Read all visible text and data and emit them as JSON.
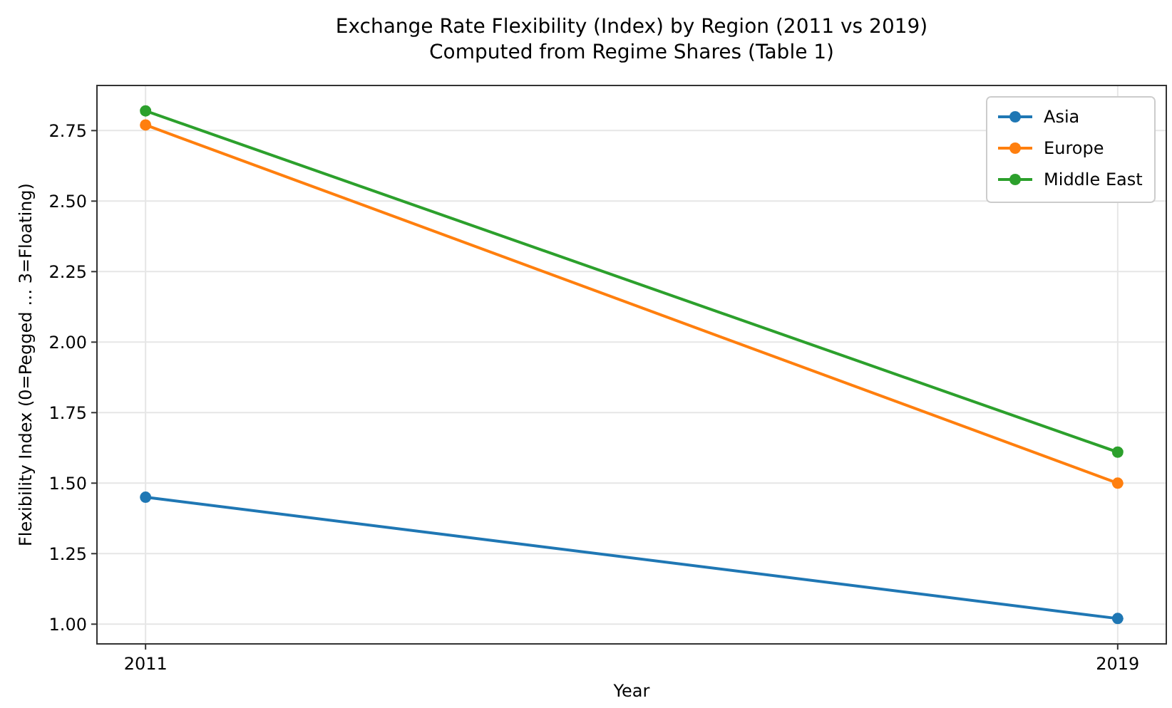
{
  "chart_data": {
    "type": "line",
    "title": "Exchange Rate Flexibility (Index) by Region (2011 vs 2019)",
    "subtitle": "Computed from Regime Shares (Table 1)",
    "xlabel": "Year",
    "ylabel": "Flexibility Index (0=Pegged … 3=Floating)",
    "x": [
      2011,
      2019
    ],
    "series": [
      {
        "name": "Asia",
        "color": "#1f77b4",
        "values": [
          1.45,
          1.02
        ]
      },
      {
        "name": "Europe",
        "color": "#ff7f0e",
        "values": [
          2.77,
          1.5
        ]
      },
      {
        "name": "Middle East",
        "color": "#2ca02c",
        "values": [
          2.82,
          1.61
        ]
      }
    ],
    "xlim": [
      2010.6,
      2019.4
    ],
    "xticks": [
      2011,
      2019
    ],
    "ylim": [
      0.93,
      2.91
    ],
    "yticks": [
      {
        "value": 1,
        "label": "1.00"
      },
      {
        "value": 1.25,
        "label": "1.25"
      },
      {
        "value": 1.5,
        "label": "1.50"
      },
      {
        "value": 1.75,
        "label": "1.75"
      },
      {
        "value": 2,
        "label": "2.00"
      },
      {
        "value": 2.25,
        "label": "2.25"
      },
      {
        "value": 2.5,
        "label": "2.50"
      },
      {
        "value": 2.75,
        "label": "2.75"
      }
    ],
    "grid": true,
    "legend": "top right",
    "marker": "circle",
    "line_style": "solid"
  }
}
